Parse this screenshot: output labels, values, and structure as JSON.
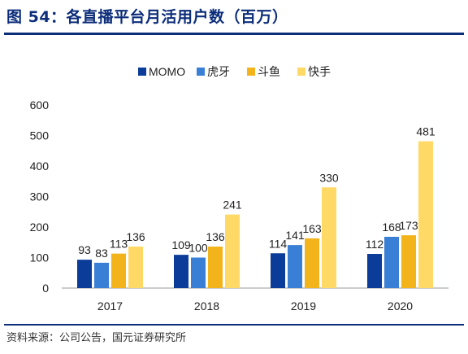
{
  "figure": {
    "title": "图 54：各直播平台月活用户数（百万）",
    "source": "资料来源：公司公告，国元证券研究所"
  },
  "chart_data": {
    "type": "bar",
    "categories": [
      "2017",
      "2018",
      "2019",
      "2020"
    ],
    "series": [
      {
        "name": "MOMO",
        "values": [
          93,
          109,
          114,
          112
        ],
        "color": "#0b3c99"
      },
      {
        "name": "虎牙",
        "values": [
          83,
          100,
          141,
          168
        ],
        "color": "#3a7fd6"
      },
      {
        "name": "斗鱼",
        "values": [
          113,
          136,
          163,
          173
        ],
        "color": "#f2b31b"
      },
      {
        "name": "快手",
        "values": [
          136,
          241,
          330,
          481
        ],
        "color": "#ffd965"
      }
    ],
    "ylim": [
      0,
      600
    ],
    "yticks": [
      0,
      100,
      200,
      300,
      400,
      500,
      600
    ],
    "grid": false,
    "legend_position": "top-center"
  }
}
